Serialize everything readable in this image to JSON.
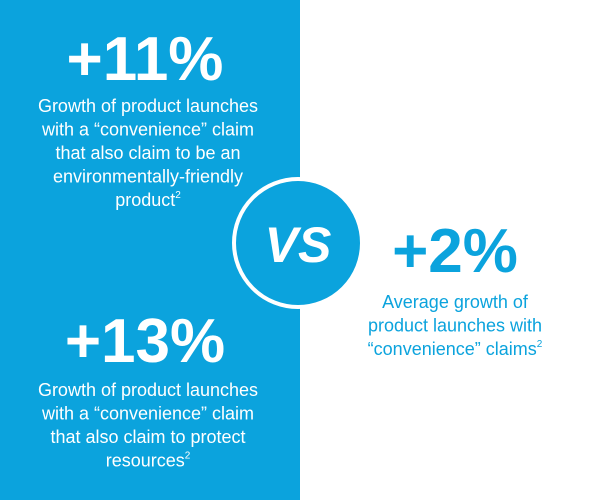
{
  "left": {
    "stat_1": {
      "value": "+11%",
      "lines": [
        "Growth of product launches",
        "with a “convenience” claim",
        "that also claim to be an",
        "environmentally-friendly",
        "product"
      ],
      "footnote": "2"
    },
    "stat_2": {
      "value": "+13%",
      "lines": [
        "Growth of product launches",
        "with a “convenience” claim",
        "that also claim to protect",
        "resources"
      ],
      "footnote": "2"
    }
  },
  "versus": "VS",
  "right": {
    "value": "+2%",
    "lines": [
      "Average growth of",
      "product launches with",
      "“convenience” claims"
    ],
    "footnote": "2"
  }
}
